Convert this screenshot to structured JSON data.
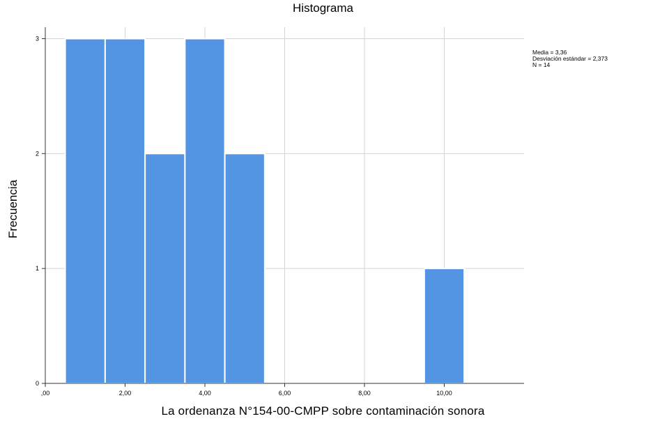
{
  "chart_data": {
    "type": "bar",
    "title": "Histograma",
    "xlabel": "La ordenanza N°154-00-CMPP sobre contaminación sonora",
    "ylabel": "Frecuencia",
    "xlim": [
      0,
      12
    ],
    "ylim": [
      0,
      3.1
    ],
    "x_ticks": [
      {
        "value": 0,
        "label": ",00"
      },
      {
        "value": 2,
        "label": "2,00"
      },
      {
        "value": 4,
        "label": "4,00"
      },
      {
        "value": 6,
        "label": "6,00"
      },
      {
        "value": 8,
        "label": "8,00"
      },
      {
        "value": 10,
        "label": "10,00"
      }
    ],
    "y_ticks": [
      {
        "value": 0,
        "label": "0"
      },
      {
        "value": 1,
        "label": "1"
      },
      {
        "value": 2,
        "label": "2"
      },
      {
        "value": 3,
        "label": "3"
      }
    ],
    "bin_width": 1,
    "bins": [
      {
        "center": 1,
        "count": 3
      },
      {
        "center": 2,
        "count": 3
      },
      {
        "center": 3,
        "count": 2
      },
      {
        "center": 4,
        "count": 3
      },
      {
        "center": 5,
        "count": 2
      },
      {
        "center": 10,
        "count": 1
      }
    ],
    "grid": true,
    "bar_color": "#5394e3",
    "stats": {
      "mean": "Media = 3,36",
      "std": "Desviación estándar = 2,373",
      "n": "N = 14"
    }
  }
}
